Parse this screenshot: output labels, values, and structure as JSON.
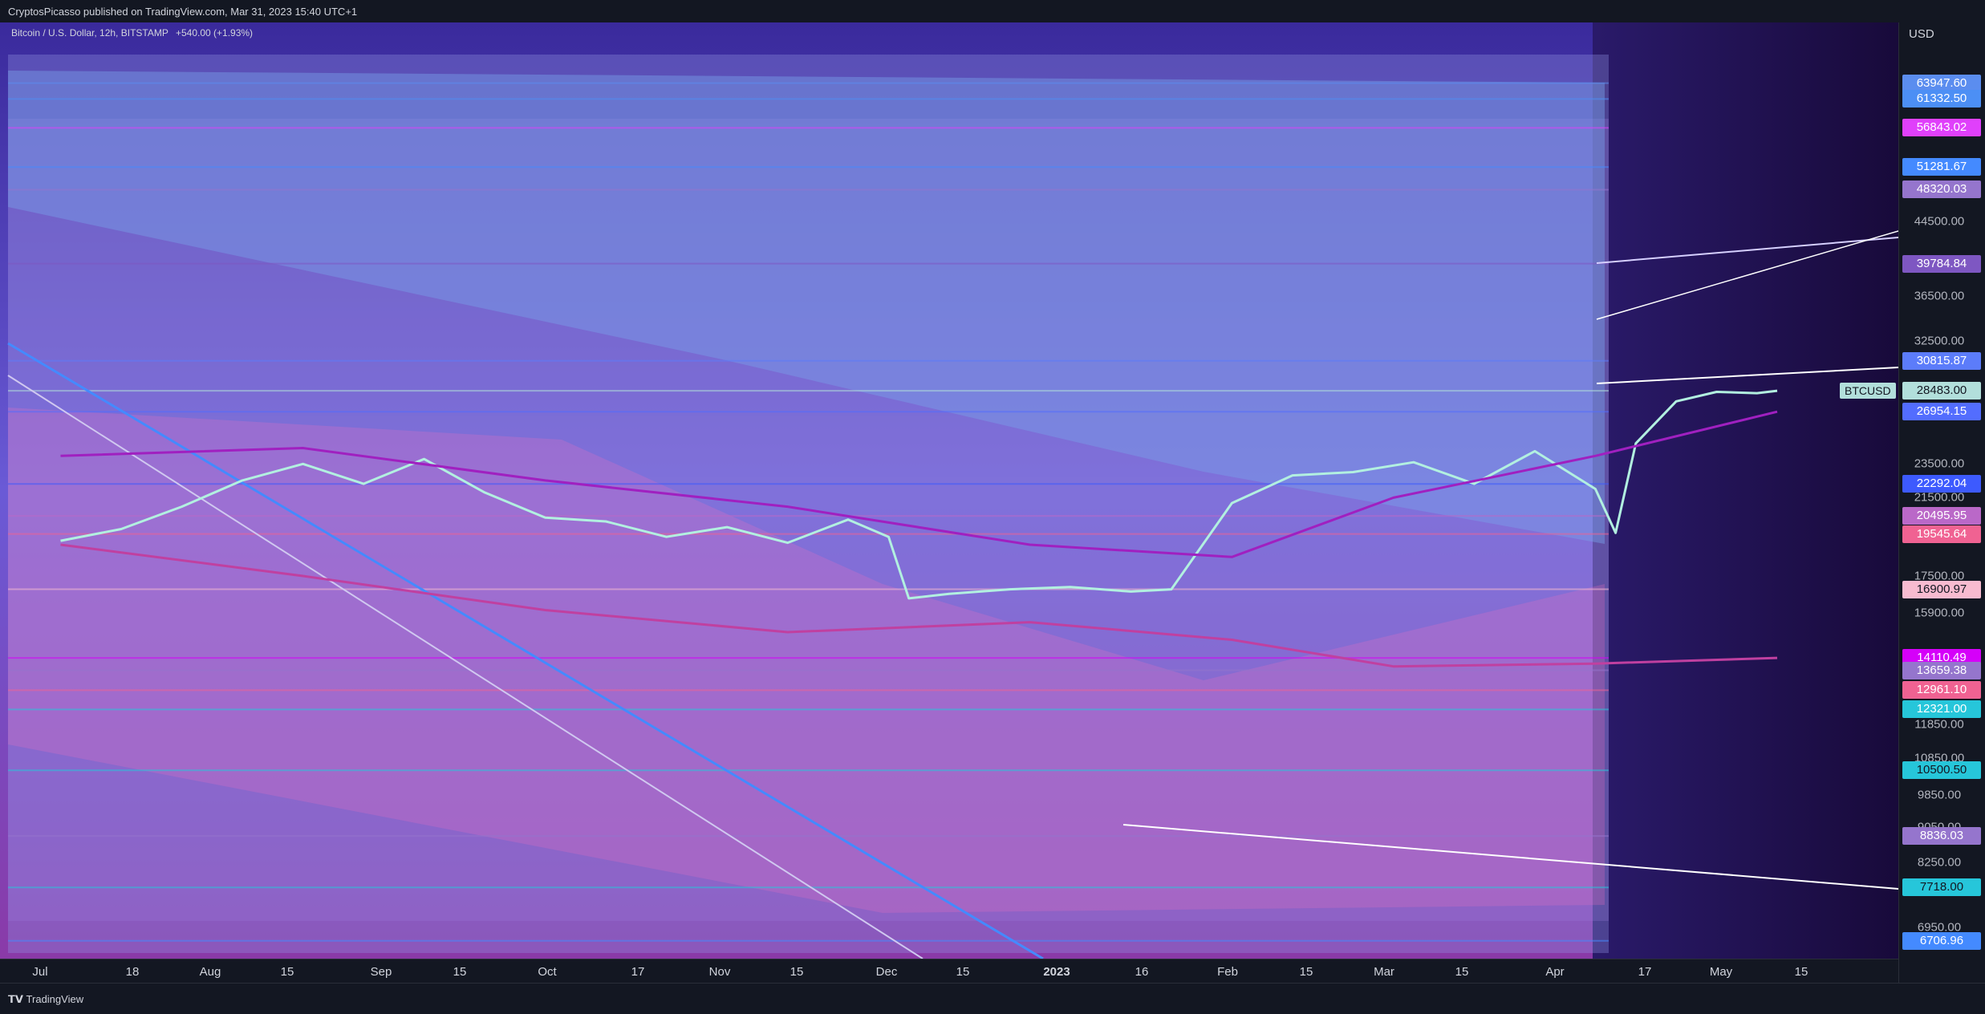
{
  "header": {
    "publish_line": "CryptosPicasso published on TradingView.com, Mar 31, 2023 15:40 UTC+1"
  },
  "footer": {
    "brand": "TradingView"
  },
  "chart_data": {
    "type": "line",
    "title": "Bitcoin / U.S. Dollar, 12h, BITSTAMP",
    "change": "+540.00 (+1.93%)",
    "symbol_label": "BTCUSD",
    "currency": "USD",
    "last_price": 28483.0,
    "x_ticks": [
      "Jul",
      "18",
      "Aug",
      "15",
      "Sep",
      "15",
      "Oct",
      "17",
      "Nov",
      "15",
      "Dec",
      "15",
      "2023",
      "16",
      "Feb",
      "15",
      "Mar",
      "15",
      "Apr",
      "17",
      "May",
      "15"
    ],
    "x_tick_bold": [
      false,
      false,
      false,
      false,
      false,
      false,
      false,
      false,
      false,
      false,
      false,
      false,
      true,
      false,
      false,
      false,
      false,
      false,
      false,
      false,
      false,
      false
    ],
    "y_ticks": [
      "44500.00",
      "36500.00",
      "32500.00",
      "23500.00",
      "21500.00",
      "17500.00",
      "15900.00",
      "11850.00",
      "10850.00",
      "9850.00",
      "9050.00",
      "8250.00",
      "6950.00"
    ],
    "y_tick_values": [
      44500,
      36500,
      32500,
      23500,
      21500,
      17500,
      15900,
      11850,
      10850,
      9850,
      9050,
      8250,
      6950
    ],
    "price_badges": [
      {
        "label": "63947.60",
        "value": 63947.6,
        "bg": "#5b8def",
        "fg": "#ffffff"
      },
      {
        "label": "61332.50",
        "value": 61332.5,
        "bg": "#4c8ff5",
        "fg": "#ffffff"
      },
      {
        "label": "56843.02",
        "value": 56843.02,
        "bg": "#e040fb",
        "fg": "#ffffff"
      },
      {
        "label": "51281.67",
        "value": 51281.67,
        "bg": "#448aff",
        "fg": "#ffffff"
      },
      {
        "label": "48320.03",
        "value": 48320.03,
        "bg": "#9575cd",
        "fg": "#ffffff"
      },
      {
        "label": "39784.84",
        "value": 39784.84,
        "bg": "#7e57c2",
        "fg": "#ffffff"
      },
      {
        "label": "30815.87",
        "value": 30815.87,
        "bg": "#5c7cfa",
        "fg": "#ffffff"
      },
      {
        "label": "28483.00",
        "value": 28483.0,
        "bg": "#b2dfdb",
        "fg": "#131722"
      },
      {
        "label": "26954.15",
        "value": 26954.15,
        "bg": "#536dfe",
        "fg": "#ffffff"
      },
      {
        "label": "22292.04",
        "value": 22292.04,
        "bg": "#3d5afe",
        "fg": "#ffffff"
      },
      {
        "label": "20495.95",
        "value": 20495.95,
        "bg": "#ba68c8",
        "fg": "#ffffff"
      },
      {
        "label": "19545.64",
        "value": 19545.64,
        "bg": "#f06292",
        "fg": "#ffffff"
      },
      {
        "label": "16900.97",
        "value": 16900.97,
        "bg": "#f8bbd0",
        "fg": "#131722"
      },
      {
        "label": "14110.49",
        "value": 14110.49,
        "bg": "#d500f9",
        "fg": "#ffffff"
      },
      {
        "label": "13659.38",
        "value": 13659.38,
        "bg": "#9575cd",
        "fg": "#ffffff"
      },
      {
        "label": "12961.10",
        "value": 12961.1,
        "bg": "#f06292",
        "fg": "#ffffff"
      },
      {
        "label": "12321.00",
        "value": 12321.0,
        "bg": "#26c6da",
        "fg": "#ffffff"
      },
      {
        "label": "10500.50",
        "value": 10500.5,
        "bg": "#26c6da",
        "fg": "#131722"
      },
      {
        "label": "8836.03",
        "value": 8836.03,
        "bg": "#9575cd",
        "fg": "#ffffff"
      },
      {
        "label": "7718.00",
        "value": 7718.0,
        "bg": "#26c6da",
        "fg": "#131722"
      },
      {
        "label": "6706.96",
        "value": 6706.96,
        "bg": "#448aff",
        "fg": "#ffffff"
      }
    ],
    "series": [
      {
        "values": [
          [
            0,
            19200
          ],
          [
            15,
            19800
          ],
          [
            30,
            21000
          ],
          [
            45,
            22500
          ],
          [
            60,
            23500
          ],
          [
            75,
            22300
          ],
          [
            90,
            23800
          ],
          [
            105,
            21800
          ],
          [
            120,
            20400
          ],
          [
            135,
            20200
          ],
          [
            150,
            19400
          ],
          [
            165,
            19900
          ],
          [
            180,
            19100
          ],
          [
            195,
            20300
          ],
          [
            205,
            19400
          ],
          [
            210,
            16500
          ],
          [
            220,
            16700
          ],
          [
            235,
            16900
          ],
          [
            250,
            17000
          ],
          [
            265,
            16800
          ],
          [
            275,
            16900
          ],
          [
            290,
            21200
          ],
          [
            305,
            22800
          ],
          [
            320,
            23000
          ],
          [
            335,
            23600
          ],
          [
            350,
            22300
          ],
          [
            365,
            24300
          ],
          [
            380,
            22000
          ],
          [
            385,
            19600
          ],
          [
            390,
            24800
          ],
          [
            400,
            27700
          ],
          [
            410,
            28400
          ],
          [
            420,
            28300
          ],
          [
            425,
            28483
          ]
        ]
      },
      {
        "values": [
          [
            0,
            24000
          ],
          [
            60,
            24500
          ],
          [
            120,
            22500
          ],
          [
            180,
            21000
          ],
          [
            240,
            19000
          ],
          [
            290,
            18400
          ],
          [
            330,
            21500
          ],
          [
            380,
            24000
          ],
          [
            425,
            26954
          ]
        ]
      },
      {
        "values": [
          [
            0,
            19000
          ],
          [
            60,
            17500
          ],
          [
            120,
            16000
          ],
          [
            180,
            15100
          ],
          [
            240,
            15500
          ],
          [
            290,
            14800
          ],
          [
            330,
            13800
          ],
          [
            380,
            13900
          ],
          [
            425,
            14110
          ]
        ]
      }
    ],
    "log_scale": true,
    "y_range": [
      6400,
      75000
    ],
    "x_range_days": [
      -15,
      455
    ]
  }
}
